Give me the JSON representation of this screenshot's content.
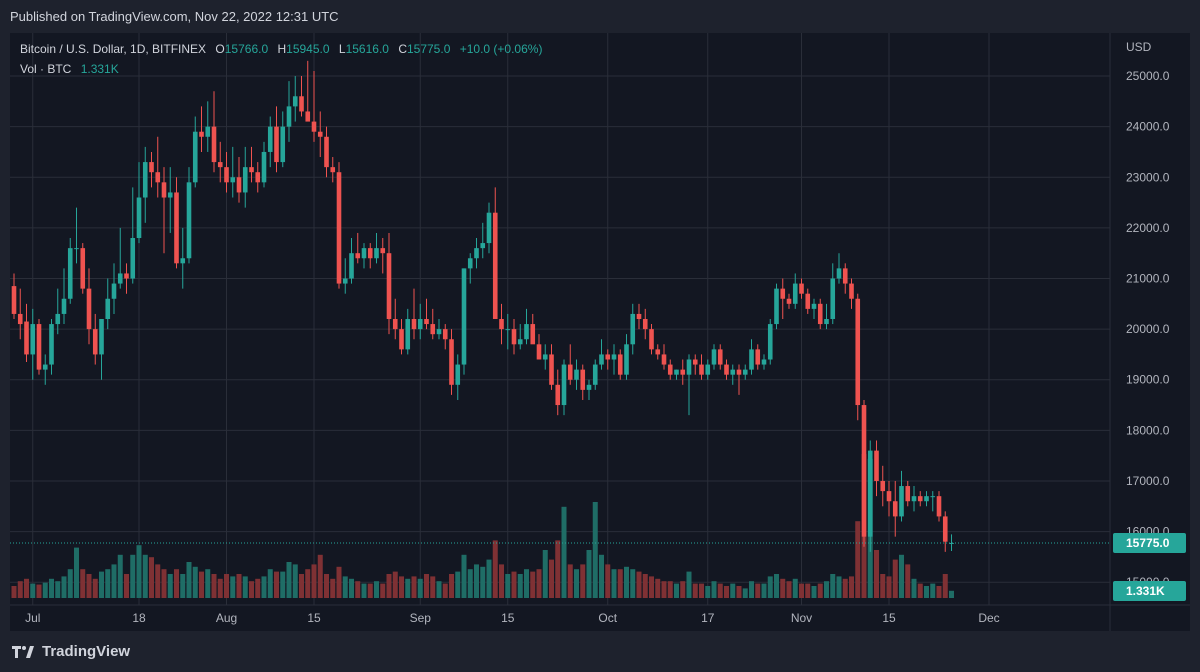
{
  "header": {
    "published": "Published on TradingView.com, Nov 22, 2022 12:31 UTC"
  },
  "legend": {
    "symbol": "Bitcoin / U.S. Dollar, 1D, BITFINEX",
    "open_key": "O",
    "open": "15766.0",
    "high_key": "H",
    "high": "15945.0",
    "low_key": "L",
    "low": "15616.0",
    "close_key": "C",
    "close": "15775.0",
    "change": "+10.0 (+0.06%)",
    "vol_label": "Vol · BTC",
    "vol_value": "1.331K"
  },
  "footer": {
    "brand": "TradingView"
  },
  "colors": {
    "up": "#26a69a",
    "down": "#ef5350",
    "up_vol": "#1f6d66",
    "down_vol": "#7f3134",
    "background": "#131722"
  },
  "chart_data": {
    "type": "candlestick",
    "currency_label": "USD",
    "y_ticks": [
      "15000.0",
      "16000.0",
      "17000.0",
      "18000.0",
      "19000.0",
      "20000.0",
      "21000.0",
      "22000.0",
      "23000.0",
      "24000.0",
      "25000.0"
    ],
    "ylim": [
      14550,
      25850
    ],
    "x_ticks": [
      {
        "label": "Jul",
        "index": 3
      },
      {
        "label": "18",
        "index": 20
      },
      {
        "label": "Aug",
        "index": 34
      },
      {
        "label": "15",
        "index": 48
      },
      {
        "label": "Sep",
        "index": 65
      },
      {
        "label": "15",
        "index": 79
      },
      {
        "label": "Oct",
        "index": 95
      },
      {
        "label": "17",
        "index": 111
      },
      {
        "label": "Nov",
        "index": 126
      },
      {
        "label": "15",
        "index": 140
      },
      {
        "label": "Dec",
        "index": 156
      }
    ],
    "last_price_label": "15775.0",
    "last_price": 15775,
    "last_volume_label": "1.331K",
    "candles": [
      {
        "o": 20850,
        "h": 21100,
        "l": 20200,
        "c": 20300,
        "v": 0.25
      },
      {
        "o": 20300,
        "h": 20800,
        "l": 19800,
        "c": 20100,
        "v": 0.35
      },
      {
        "o": 20150,
        "h": 20500,
        "l": 19350,
        "c": 19500,
        "v": 0.4
      },
      {
        "o": 19500,
        "h": 20400,
        "l": 19000,
        "c": 20100,
        "v": 0.3
      },
      {
        "o": 20100,
        "h": 20200,
        "l": 19100,
        "c": 19200,
        "v": 0.28
      },
      {
        "o": 19200,
        "h": 19500,
        "l": 18900,
        "c": 19300,
        "v": 0.32
      },
      {
        "o": 19300,
        "h": 20200,
        "l": 19100,
        "c": 20100,
        "v": 0.4
      },
      {
        "o": 20100,
        "h": 20800,
        "l": 19900,
        "c": 20300,
        "v": 0.35
      },
      {
        "o": 20300,
        "h": 21200,
        "l": 20100,
        "c": 20600,
        "v": 0.45
      },
      {
        "o": 20600,
        "h": 21800,
        "l": 20500,
        "c": 21600,
        "v": 0.6
      },
      {
        "o": 21600,
        "h": 22400,
        "l": 21300,
        "c": 21600,
        "v": 1.05
      },
      {
        "o": 21600,
        "h": 21700,
        "l": 20700,
        "c": 20800,
        "v": 0.6
      },
      {
        "o": 20800,
        "h": 21200,
        "l": 19700,
        "c": 20000,
        "v": 0.5
      },
      {
        "o": 20000,
        "h": 20300,
        "l": 19300,
        "c": 19500,
        "v": 0.4
      },
      {
        "o": 19500,
        "h": 20200,
        "l": 19000,
        "c": 20200,
        "v": 0.55
      },
      {
        "o": 20200,
        "h": 21000,
        "l": 20000,
        "c": 20600,
        "v": 0.6
      },
      {
        "o": 20600,
        "h": 21300,
        "l": 20300,
        "c": 20900,
        "v": 0.7
      },
      {
        "o": 20900,
        "h": 22000,
        "l": 20800,
        "c": 21100,
        "v": 0.9
      },
      {
        "o": 21100,
        "h": 21300,
        "l": 20700,
        "c": 21000,
        "v": 0.5
      },
      {
        "o": 21000,
        "h": 22800,
        "l": 20900,
        "c": 21800,
        "v": 0.9
      },
      {
        "o": 21800,
        "h": 23300,
        "l": 21700,
        "c": 22600,
        "v": 1.1
      },
      {
        "o": 22600,
        "h": 23600,
        "l": 22100,
        "c": 23300,
        "v": 0.9
      },
      {
        "o": 23300,
        "h": 23500,
        "l": 22800,
        "c": 23100,
        "v": 0.85
      },
      {
        "o": 23100,
        "h": 23800,
        "l": 22600,
        "c": 22900,
        "v": 0.7
      },
      {
        "o": 22900,
        "h": 23200,
        "l": 21500,
        "c": 22600,
        "v": 0.6
      },
      {
        "o": 22600,
        "h": 23200,
        "l": 21900,
        "c": 22700,
        "v": 0.5
      },
      {
        "o": 22700,
        "h": 23000,
        "l": 21200,
        "c": 21300,
        "v": 0.6
      },
      {
        "o": 21300,
        "h": 22000,
        "l": 20800,
        "c": 21400,
        "v": 0.5
      },
      {
        "o": 21400,
        "h": 23200,
        "l": 21300,
        "c": 22900,
        "v": 0.75
      },
      {
        "o": 22900,
        "h": 24200,
        "l": 22800,
        "c": 23900,
        "v": 0.65
      },
      {
        "o": 23900,
        "h": 24400,
        "l": 23500,
        "c": 23800,
        "v": 0.55
      },
      {
        "o": 23800,
        "h": 24500,
        "l": 23500,
        "c": 24000,
        "v": 0.6
      },
      {
        "o": 24000,
        "h": 24700,
        "l": 23100,
        "c": 23300,
        "v": 0.5
      },
      {
        "o": 23300,
        "h": 23700,
        "l": 22900,
        "c": 23200,
        "v": 0.4
      },
      {
        "o": 23200,
        "h": 23500,
        "l": 22700,
        "c": 22900,
        "v": 0.5
      },
      {
        "o": 22900,
        "h": 23600,
        "l": 22600,
        "c": 23000,
        "v": 0.45
      },
      {
        "o": 23000,
        "h": 23400,
        "l": 22500,
        "c": 22700,
        "v": 0.5
      },
      {
        "o": 22700,
        "h": 23600,
        "l": 22400,
        "c": 23200,
        "v": 0.45
      },
      {
        "o": 23200,
        "h": 23600,
        "l": 22900,
        "c": 23100,
        "v": 0.35
      },
      {
        "o": 23100,
        "h": 23300,
        "l": 22700,
        "c": 22900,
        "v": 0.4
      },
      {
        "o": 22900,
        "h": 23700,
        "l": 22800,
        "c": 23500,
        "v": 0.45
      },
      {
        "o": 23500,
        "h": 24200,
        "l": 23200,
        "c": 24000,
        "v": 0.6
      },
      {
        "o": 24000,
        "h": 24400,
        "l": 23100,
        "c": 23300,
        "v": 0.55
      },
      {
        "o": 23300,
        "h": 24300,
        "l": 23200,
        "c": 24000,
        "v": 0.55
      },
      {
        "o": 24000,
        "h": 24900,
        "l": 23700,
        "c": 24400,
        "v": 0.75
      },
      {
        "o": 24400,
        "h": 25000,
        "l": 24100,
        "c": 24600,
        "v": 0.7
      },
      {
        "o": 24600,
        "h": 25000,
        "l": 24200,
        "c": 24300,
        "v": 0.5
      },
      {
        "o": 24300,
        "h": 25300,
        "l": 24200,
        "c": 24100,
        "v": 0.6
      },
      {
        "o": 24100,
        "h": 25100,
        "l": 23700,
        "c": 23900,
        "v": 0.7
      },
      {
        "o": 23900,
        "h": 24300,
        "l": 23400,
        "c": 23800,
        "v": 0.9
      },
      {
        "o": 23800,
        "h": 24000,
        "l": 23000,
        "c": 23200,
        "v": 0.5
      },
      {
        "o": 23200,
        "h": 23400,
        "l": 22900,
        "c": 23100,
        "v": 0.4
      },
      {
        "o": 23100,
        "h": 23300,
        "l": 20800,
        "c": 20900,
        "v": 0.65
      },
      {
        "o": 20900,
        "h": 21400,
        "l": 20700,
        "c": 21000,
        "v": 0.45
      },
      {
        "o": 21000,
        "h": 21800,
        "l": 20900,
        "c": 21500,
        "v": 0.4
      },
      {
        "o": 21500,
        "h": 21900,
        "l": 21300,
        "c": 21400,
        "v": 0.35
      },
      {
        "o": 21400,
        "h": 21700,
        "l": 21200,
        "c": 21600,
        "v": 0.3
      },
      {
        "o": 21600,
        "h": 21700,
        "l": 21200,
        "c": 21400,
        "v": 0.3
      },
      {
        "o": 21400,
        "h": 21900,
        "l": 21300,
        "c": 21600,
        "v": 0.35
      },
      {
        "o": 21600,
        "h": 21800,
        "l": 21100,
        "c": 21500,
        "v": 0.3
      },
      {
        "o": 21500,
        "h": 21900,
        "l": 19900,
        "c": 20200,
        "v": 0.5
      },
      {
        "o": 20200,
        "h": 20600,
        "l": 19800,
        "c": 20000,
        "v": 0.55
      },
      {
        "o": 20000,
        "h": 20200,
        "l": 19500,
        "c": 19600,
        "v": 0.45
      },
      {
        "o": 19600,
        "h": 20400,
        "l": 19500,
        "c": 20200,
        "v": 0.4
      },
      {
        "o": 20200,
        "h": 20800,
        "l": 19800,
        "c": 20000,
        "v": 0.45
      },
      {
        "o": 20000,
        "h": 20500,
        "l": 19800,
        "c": 20200,
        "v": 0.4
      },
      {
        "o": 20200,
        "h": 20600,
        "l": 20000,
        "c": 20100,
        "v": 0.5
      },
      {
        "o": 20100,
        "h": 20400,
        "l": 19800,
        "c": 19900,
        "v": 0.45
      },
      {
        "o": 19900,
        "h": 20200,
        "l": 19800,
        "c": 20000,
        "v": 0.35
      },
      {
        "o": 20000,
        "h": 20100,
        "l": 19600,
        "c": 19800,
        "v": 0.3
      },
      {
        "o": 19800,
        "h": 20000,
        "l": 18700,
        "c": 18900,
        "v": 0.5
      },
      {
        "o": 18900,
        "h": 19500,
        "l": 18600,
        "c": 19300,
        "v": 0.55
      },
      {
        "o": 19300,
        "h": 21200,
        "l": 19100,
        "c": 21200,
        "v": 0.9
      },
      {
        "o": 21200,
        "h": 21500,
        "l": 20900,
        "c": 21400,
        "v": 0.6
      },
      {
        "o": 21400,
        "h": 21800,
        "l": 21200,
        "c": 21600,
        "v": 0.7
      },
      {
        "o": 21600,
        "h": 22100,
        "l": 21400,
        "c": 21700,
        "v": 0.65
      },
      {
        "o": 21700,
        "h": 22500,
        "l": 21500,
        "c": 22300,
        "v": 0.8
      },
      {
        "o": 22300,
        "h": 22800,
        "l": 20200,
        "c": 20200,
        "v": 1.2
      },
      {
        "o": 20200,
        "h": 20500,
        "l": 19700,
        "c": 20000,
        "v": 0.7
      },
      {
        "o": 20000,
        "h": 20300,
        "l": 19600,
        "c": 20000,
        "v": 0.5
      },
      {
        "o": 20000,
        "h": 20200,
        "l": 19500,
        "c": 19700,
        "v": 0.55
      },
      {
        "o": 19700,
        "h": 20100,
        "l": 19600,
        "c": 19800,
        "v": 0.5
      },
      {
        "o": 19800,
        "h": 20400,
        "l": 19700,
        "c": 20100,
        "v": 0.6
      },
      {
        "o": 20100,
        "h": 20300,
        "l": 19800,
        "c": 19700,
        "v": 0.55
      },
      {
        "o": 19700,
        "h": 19900,
        "l": 19400,
        "c": 19400,
        "v": 0.6
      },
      {
        "o": 19400,
        "h": 19700,
        "l": 19200,
        "c": 19500,
        "v": 1.0
      },
      {
        "o": 19500,
        "h": 19700,
        "l": 18800,
        "c": 18900,
        "v": 0.8
      },
      {
        "o": 18900,
        "h": 19200,
        "l": 18300,
        "c": 18500,
        "v": 1.2
      },
      {
        "o": 18500,
        "h": 19400,
        "l": 18300,
        "c": 19300,
        "v": 1.9
      },
      {
        "o": 19300,
        "h": 19700,
        "l": 18900,
        "c": 19000,
        "v": 0.7
      },
      {
        "o": 19000,
        "h": 19400,
        "l": 18800,
        "c": 19200,
        "v": 0.6
      },
      {
        "o": 19200,
        "h": 19300,
        "l": 18600,
        "c": 18800,
        "v": 0.7
      },
      {
        "o": 18800,
        "h": 19000,
        "l": 18600,
        "c": 18900,
        "v": 1.0
      },
      {
        "o": 18900,
        "h": 19400,
        "l": 18800,
        "c": 19300,
        "v": 2.0
      },
      {
        "o": 19300,
        "h": 19800,
        "l": 19200,
        "c": 19500,
        "v": 0.9
      },
      {
        "o": 19500,
        "h": 19600,
        "l": 19200,
        "c": 19400,
        "v": 0.7
      },
      {
        "o": 19400,
        "h": 19700,
        "l": 19100,
        "c": 19500,
        "v": 0.6
      },
      {
        "o": 19500,
        "h": 19600,
        "l": 19000,
        "c": 19100,
        "v": 0.6
      },
      {
        "o": 19100,
        "h": 19900,
        "l": 19000,
        "c": 19700,
        "v": 0.65
      },
      {
        "o": 19700,
        "h": 20500,
        "l": 19500,
        "c": 20300,
        "v": 0.6
      },
      {
        "o": 20300,
        "h": 20500,
        "l": 20000,
        "c": 20200,
        "v": 0.55
      },
      {
        "o": 20200,
        "h": 20400,
        "l": 19800,
        "c": 20000,
        "v": 0.5
      },
      {
        "o": 20000,
        "h": 20100,
        "l": 19500,
        "c": 19600,
        "v": 0.45
      },
      {
        "o": 19600,
        "h": 19700,
        "l": 19400,
        "c": 19500,
        "v": 0.4
      },
      {
        "o": 19500,
        "h": 19700,
        "l": 19200,
        "c": 19300,
        "v": 0.35
      },
      {
        "o": 19300,
        "h": 19400,
        "l": 19000,
        "c": 19100,
        "v": 0.35
      },
      {
        "o": 19100,
        "h": 19200,
        "l": 19000,
        "c": 19200,
        "v": 0.3
      },
      {
        "o": 19200,
        "h": 19400,
        "l": 18900,
        "c": 19100,
        "v": 0.35
      },
      {
        "o": 19100,
        "h": 19500,
        "l": 18300,
        "c": 19400,
        "v": 0.55
      },
      {
        "o": 19400,
        "h": 19500,
        "l": 19100,
        "c": 19300,
        "v": 0.3
      },
      {
        "o": 19300,
        "h": 19500,
        "l": 19000,
        "c": 19100,
        "v": 0.3
      },
      {
        "o": 19100,
        "h": 19400,
        "l": 19000,
        "c": 19300,
        "v": 0.25
      },
      {
        "o": 19300,
        "h": 19700,
        "l": 19200,
        "c": 19600,
        "v": 0.35
      },
      {
        "o": 19600,
        "h": 19700,
        "l": 19200,
        "c": 19300,
        "v": 0.3
      },
      {
        "o": 19300,
        "h": 19400,
        "l": 19000,
        "c": 19100,
        "v": 0.25
      },
      {
        "o": 19100,
        "h": 19300,
        "l": 18900,
        "c": 19200,
        "v": 0.3
      },
      {
        "o": 19200,
        "h": 19300,
        "l": 18700,
        "c": 19100,
        "v": 0.25
      },
      {
        "o": 19100,
        "h": 19300,
        "l": 19000,
        "c": 19200,
        "v": 0.2
      },
      {
        "o": 19200,
        "h": 19800,
        "l": 19100,
        "c": 19600,
        "v": 0.35
      },
      {
        "o": 19600,
        "h": 19700,
        "l": 19200,
        "c": 19300,
        "v": 0.3
      },
      {
        "o": 19300,
        "h": 19500,
        "l": 19200,
        "c": 19400,
        "v": 0.3
      },
      {
        "o": 19400,
        "h": 20200,
        "l": 19300,
        "c": 20100,
        "v": 0.45
      },
      {
        "o": 20100,
        "h": 20900,
        "l": 20000,
        "c": 20800,
        "v": 0.5
      },
      {
        "o": 20800,
        "h": 21000,
        "l": 20200,
        "c": 20600,
        "v": 0.4
      },
      {
        "o": 20600,
        "h": 20700,
        "l": 20400,
        "c": 20500,
        "v": 0.35
      },
      {
        "o": 20500,
        "h": 21100,
        "l": 20400,
        "c": 20900,
        "v": 0.4
      },
      {
        "o": 20900,
        "h": 21000,
        "l": 20600,
        "c": 20700,
        "v": 0.3
      },
      {
        "o": 20700,
        "h": 20800,
        "l": 20300,
        "c": 20400,
        "v": 0.3
      },
      {
        "o": 20400,
        "h": 20600,
        "l": 20200,
        "c": 20500,
        "v": 0.25
      },
      {
        "o": 20500,
        "h": 20600,
        "l": 20000,
        "c": 20100,
        "v": 0.3
      },
      {
        "o": 20100,
        "h": 20500,
        "l": 20000,
        "c": 20200,
        "v": 0.35
      },
      {
        "o": 20200,
        "h": 21300,
        "l": 20100,
        "c": 21000,
        "v": 0.5
      },
      {
        "o": 21000,
        "h": 21500,
        "l": 20900,
        "c": 21200,
        "v": 0.45
      },
      {
        "o": 21200,
        "h": 21300,
        "l": 20700,
        "c": 20900,
        "v": 0.4
      },
      {
        "o": 20900,
        "h": 21000,
        "l": 20400,
        "c": 20600,
        "v": 0.45
      },
      {
        "o": 20600,
        "h": 20700,
        "l": 18200,
        "c": 18500,
        "v": 1.6
      },
      {
        "o": 18500,
        "h": 18600,
        "l": 15700,
        "c": 15900,
        "v": 3.0
      },
      {
        "o": 15900,
        "h": 17800,
        "l": 15600,
        "c": 17600,
        "v": 2.9
      },
      {
        "o": 17600,
        "h": 17800,
        "l": 16700,
        "c": 17000,
        "v": 1.0
      },
      {
        "o": 17000,
        "h": 17300,
        "l": 16500,
        "c": 16800,
        "v": 0.5
      },
      {
        "o": 16800,
        "h": 17000,
        "l": 16300,
        "c": 16600,
        "v": 0.45
      },
      {
        "o": 16600,
        "h": 17000,
        "l": 15900,
        "c": 16300,
        "v": 0.8
      },
      {
        "o": 16300,
        "h": 17200,
        "l": 16200,
        "c": 16900,
        "v": 0.9
      },
      {
        "o": 16900,
        "h": 17000,
        "l": 16500,
        "c": 16600,
        "v": 0.7
      },
      {
        "o": 16600,
        "h": 16900,
        "l": 16400,
        "c": 16700,
        "v": 0.4
      },
      {
        "o": 16700,
        "h": 16800,
        "l": 16500,
        "c": 16600,
        "v": 0.3
      },
      {
        "o": 16600,
        "h": 16800,
        "l": 16500,
        "c": 16700,
        "v": 0.25
      },
      {
        "o": 16700,
        "h": 16800,
        "l": 16400,
        "c": 16700,
        "v": 0.3
      },
      {
        "o": 16700,
        "h": 16800,
        "l": 16200,
        "c": 16300,
        "v": 0.25
      },
      {
        "o": 16300,
        "h": 16400,
        "l": 15600,
        "c": 15800,
        "v": 0.5
      },
      {
        "o": 15766,
        "h": 15945,
        "l": 15616,
        "c": 15775,
        "v": 0.15
      }
    ]
  }
}
